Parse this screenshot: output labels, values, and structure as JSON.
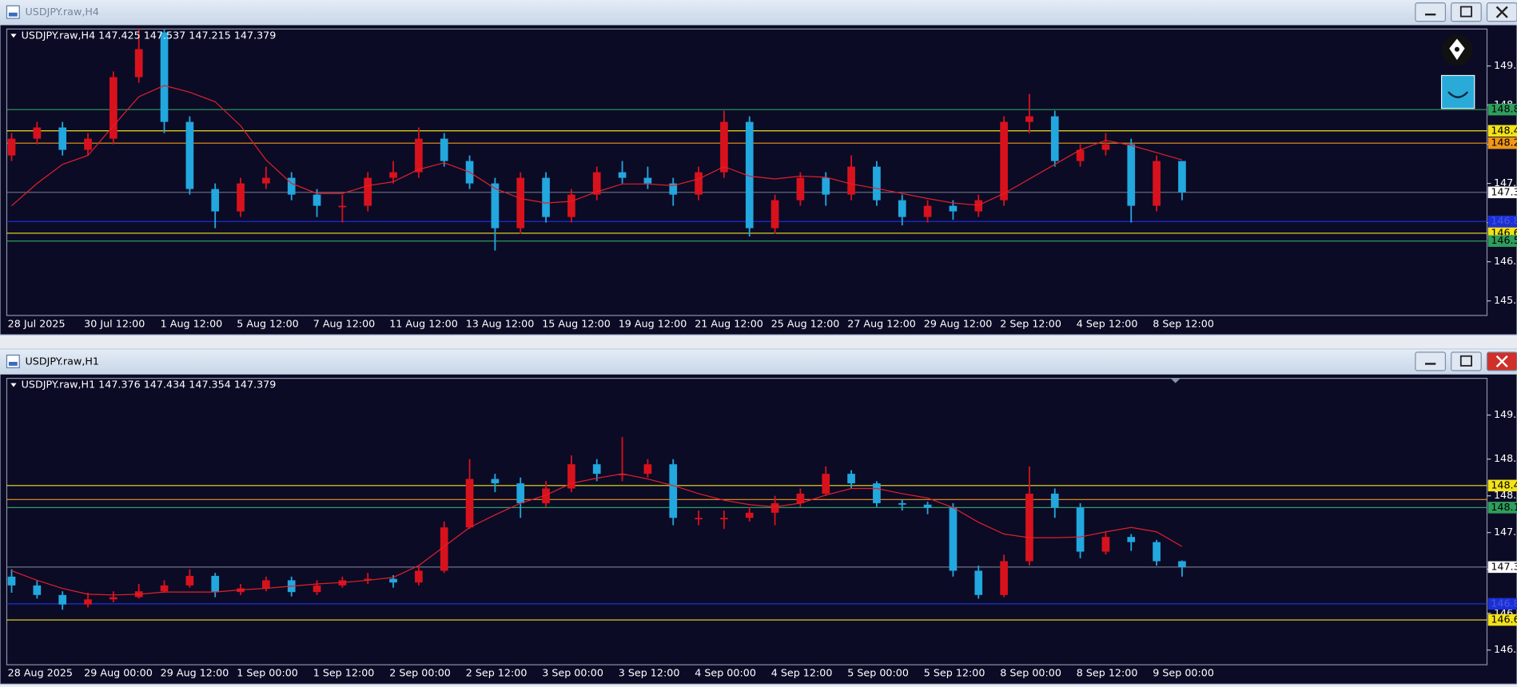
{
  "chart_data": [
    {
      "type": "candlestick",
      "window_title": "USDJPY.raw,H4",
      "info": "USDJPY.raw,H4  147.425 147.537 147.215 147.379",
      "up_color": "#d8121c",
      "down_color": "#22a7de",
      "x": [
        "28 Jul 2025",
        null,
        null,
        "30 Jul 12:00",
        null,
        null,
        "1 Aug 12:00",
        null,
        null,
        "5 Aug 12:00",
        null,
        null,
        "7 Aug 12:00",
        null,
        null,
        "11 Aug 12:00",
        null,
        null,
        "13 Aug 12:00",
        null,
        null,
        "15 Aug 12:00",
        null,
        null,
        "19 Aug 12:00",
        null,
        null,
        "21 Aug 12:00",
        null,
        null,
        "25 Aug 12:00",
        null,
        null,
        "27 Aug 12:00",
        null,
        null,
        "29 Aug 12:00",
        null,
        null,
        "2 Sep 12:00",
        null,
        null,
        "4 Sep 12:00",
        null,
        null,
        "8 Sep 12:00",
        null
      ],
      "open": [
        148.0,
        148.3,
        148.5,
        148.1,
        148.3,
        149.4,
        150.2,
        148.6,
        147.4,
        147.0,
        147.5,
        147.6,
        147.3,
        147.1,
        147.1,
        147.6,
        147.7,
        148.3,
        147.9,
        147.5,
        146.7,
        147.6,
        146.9,
        147.3,
        147.7,
        147.6,
        147.5,
        147.3,
        147.7,
        148.6,
        146.7,
        147.2,
        147.6,
        147.3,
        147.8,
        147.2,
        146.9,
        147.1,
        147.0,
        147.2,
        148.6,
        148.7,
        147.9,
        148.1,
        148.2,
        147.1,
        147.9
      ],
      "high": [
        148.4,
        148.6,
        148.6,
        148.4,
        149.5,
        150.3,
        150.3,
        148.7,
        147.5,
        147.6,
        147.8,
        147.7,
        147.4,
        147.3,
        147.7,
        147.9,
        148.5,
        148.4,
        148.0,
        147.6,
        147.7,
        147.7,
        147.4,
        147.8,
        147.9,
        147.8,
        147.6,
        147.8,
        148.8,
        148.7,
        147.3,
        147.7,
        147.7,
        148.0,
        147.9,
        147.3,
        147.2,
        147.2,
        147.3,
        148.7,
        149.1,
        148.8,
        148.2,
        148.4,
        148.3,
        148.0,
        147.9
      ],
      "low": [
        147.9,
        148.2,
        148.0,
        148.0,
        148.2,
        149.3,
        148.4,
        147.3,
        146.7,
        146.9,
        147.4,
        147.2,
        146.9,
        146.8,
        147.0,
        147.5,
        147.6,
        147.8,
        147.4,
        146.3,
        146.6,
        146.8,
        146.8,
        147.2,
        147.5,
        147.4,
        147.1,
        147.2,
        147.6,
        146.55,
        146.6,
        147.1,
        147.1,
        147.2,
        147.1,
        146.75,
        146.8,
        146.85,
        146.9,
        147.1,
        148.4,
        147.8,
        147.8,
        148.0,
        146.8,
        147.0,
        147.2
      ],
      "close": [
        148.3,
        148.5,
        148.1,
        148.3,
        149.4,
        149.9,
        148.6,
        147.4,
        147.0,
        147.5,
        147.6,
        147.3,
        147.1,
        147.1,
        147.6,
        147.7,
        148.3,
        147.9,
        147.5,
        146.7,
        147.6,
        146.9,
        147.3,
        147.7,
        147.6,
        147.5,
        147.3,
        147.7,
        148.6,
        146.7,
        147.2,
        147.6,
        147.3,
        147.8,
        147.2,
        146.9,
        147.1,
        147.0,
        147.2,
        148.6,
        148.7,
        147.9,
        148.1,
        148.2,
        147.1,
        147.9,
        147.34
      ],
      "overlays": [
        {
          "color": "#e0202a",
          "values": [
            147.1,
            147.5,
            147.84,
            148.0,
            148.53,
            149.05,
            149.25,
            149.13,
            148.96,
            148.53,
            147.92,
            147.5,
            147.32,
            147.32,
            147.46,
            147.53,
            147.75,
            147.87,
            147.7,
            147.41,
            147.23,
            147.15,
            147.18,
            147.35,
            147.49,
            147.49,
            147.46,
            147.58,
            147.8,
            147.63,
            147.58,
            147.63,
            147.61,
            147.49,
            147.41,
            147.32,
            147.23,
            147.15,
            147.11,
            147.32,
            147.58,
            147.84,
            148.1,
            148.27,
            148.18,
            148.05,
            147.92
          ]
        }
      ],
      "levels": [
        {
          "value": 148.82,
          "label": "148.8",
          "color": "#2f9e5c"
        },
        {
          "value": 148.44,
          "label": "148.4",
          "color": "#f2e21a"
        },
        {
          "value": 148.22,
          "label": "148.2",
          "color": "#f0961a"
        },
        {
          "value": 146.82,
          "label": "146.8",
          "color": "#1b2fd8"
        },
        {
          "value": 146.61,
          "label": "146.6",
          "color": "#f2e21a"
        },
        {
          "value": 146.47,
          "label": "146.5",
          "color": "#2f9e5c"
        }
      ],
      "price_line": {
        "value": 147.34,
        "label": "147.3"
      },
      "ylim": [
        145.14,
        150.26
      ],
      "yticks": [
        145.4,
        146.1,
        146.8,
        147.5,
        148.2,
        148.9,
        149.6
      ]
    },
    {
      "type": "candlestick",
      "window_title": "USDJPY.raw,H1",
      "info": "USDJPY.raw,H1  147.376 147.434 147.354 147.379",
      "up_color": "#d8121c",
      "down_color": "#22a7de",
      "x": [
        "28 Aug 2025",
        null,
        null,
        "29 Aug 00:00",
        null,
        null,
        "29 Aug 12:00",
        null,
        null,
        "1 Sep 00:00",
        null,
        null,
        "1 Sep 12:00",
        null,
        null,
        "2 Sep 00:00",
        null,
        null,
        "2 Sep 12:00",
        null,
        null,
        "3 Sep 00:00",
        null,
        null,
        "3 Sep 12:00",
        null,
        null,
        "4 Sep 00:00",
        null,
        null,
        "4 Sep 12:00",
        null,
        null,
        "5 Sep 00:00",
        null,
        null,
        "5 Sep 12:00",
        null,
        null,
        "8 Sep 00:00",
        null,
        null,
        "8 Sep 12:00",
        null,
        null,
        "9 Sep 00:00",
        null
      ],
      "open": [
        147.2,
        147.08,
        146.95,
        146.82,
        146.89,
        146.92,
        147.0,
        147.08,
        147.21,
        146.99,
        147.04,
        147.15,
        146.99,
        147.08,
        147.15,
        147.17,
        147.12,
        147.28,
        147.87,
        148.53,
        148.47,
        148.2,
        148.4,
        148.73,
        148.6,
        148.6,
        148.73,
        148.0,
        148.0,
        148.0,
        148.07,
        148.2,
        148.33,
        148.6,
        148.47,
        148.2,
        148.18,
        148.14,
        147.28,
        146.95,
        147.41,
        148.33,
        148.14,
        147.54,
        147.74,
        147.67,
        147.41
      ],
      "high": [
        147.3,
        147.15,
        147.0,
        146.98,
        147.0,
        147.1,
        147.15,
        147.3,
        147.25,
        147.1,
        147.2,
        147.2,
        147.15,
        147.2,
        147.25,
        147.22,
        147.35,
        147.95,
        148.8,
        148.6,
        148.55,
        148.5,
        148.85,
        148.8,
        149.1,
        148.8,
        148.8,
        148.1,
        148.1,
        148.15,
        148.3,
        148.4,
        148.7,
        148.65,
        148.5,
        148.25,
        148.22,
        148.2,
        147.35,
        147.5,
        148.7,
        148.4,
        148.2,
        147.8,
        147.78,
        147.7,
        147.42
      ],
      "low": [
        146.98,
        146.9,
        146.75,
        146.78,
        146.85,
        146.9,
        146.98,
        147.05,
        146.92,
        146.95,
        147.0,
        146.93,
        146.95,
        147.05,
        147.1,
        147.05,
        147.08,
        147.25,
        147.85,
        148.35,
        148.0,
        148.15,
        148.35,
        148.5,
        148.5,
        148.55,
        147.9,
        147.9,
        147.85,
        147.95,
        147.9,
        148.15,
        148.3,
        148.4,
        148.15,
        148.1,
        148.05,
        147.2,
        146.9,
        146.92,
        147.35,
        148.0,
        147.45,
        147.5,
        147.55,
        147.35,
        147.2
      ],
      "close": [
        147.08,
        146.95,
        146.82,
        146.89,
        146.92,
        147.0,
        147.08,
        147.21,
        146.99,
        147.04,
        147.15,
        146.99,
        147.08,
        147.15,
        147.17,
        147.12,
        147.28,
        147.87,
        148.53,
        148.47,
        148.2,
        148.4,
        148.73,
        148.6,
        148.6,
        148.73,
        148.0,
        148.0,
        148.0,
        148.07,
        148.2,
        148.33,
        148.6,
        148.47,
        148.2,
        148.18,
        148.14,
        147.28,
        146.95,
        147.41,
        148.33,
        148.14,
        147.54,
        147.74,
        147.67,
        147.41,
        147.33
      ],
      "overlays": [
        {
          "color": "#e0202a",
          "values": [
            147.28,
            147.15,
            147.04,
            146.96,
            146.95,
            146.96,
            146.99,
            146.99,
            146.99,
            147.02,
            147.04,
            147.07,
            147.1,
            147.12,
            147.15,
            147.19,
            147.35,
            147.61,
            147.87,
            148.04,
            148.2,
            148.31,
            148.47,
            148.54,
            148.6,
            148.53,
            148.44,
            148.33,
            148.24,
            148.18,
            148.15,
            148.2,
            148.31,
            148.4,
            148.4,
            148.33,
            148.27,
            148.14,
            147.94,
            147.78,
            147.73,
            147.73,
            147.74,
            147.81,
            147.87,
            147.81,
            147.61
          ]
        }
      ],
      "levels": [
        {
          "value": 148.44,
          "label": "148.4",
          "color": "#f2e21a"
        },
        {
          "value": 148.25,
          "color": "#f0961a"
        },
        {
          "value": 148.14,
          "label": "148.1",
          "color": "#2f9e5c"
        },
        {
          "value": 146.83,
          "label": "146.8",
          "color": "#1b2fd8"
        },
        {
          "value": 146.61,
          "label": "146.6",
          "color": "#f2e21a"
        }
      ],
      "price_line": {
        "value": 147.33,
        "label": "147.3"
      },
      "ylim": [
        146.0,
        149.9
      ],
      "yticks": [
        146.2,
        146.7,
        147.3,
        147.8,
        148.3,
        148.8,
        149.4
      ]
    }
  ]
}
